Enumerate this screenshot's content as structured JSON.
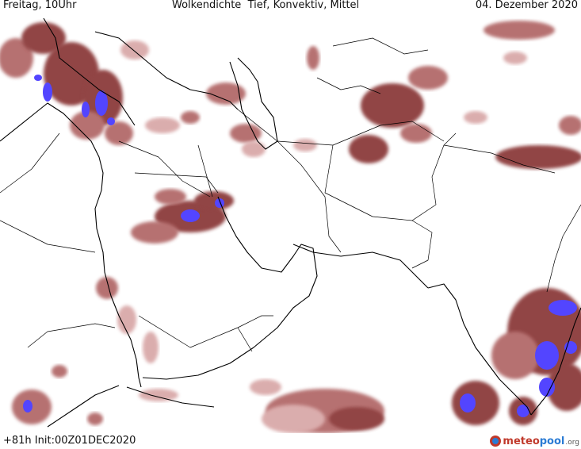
{
  "header": {
    "left": "Freitag, 10Uhr",
    "center": "Wolkendichte  Tief, Konvektiv, Mittel",
    "right": "04. Dezember 2020"
  },
  "footer": {
    "run_info": "+81h  Init:00Z01DEC2020",
    "brand": {
      "part1": "meteo",
      "part2": "pool",
      "suffix": ".org"
    }
  },
  "colors": {
    "background": "#ffffff",
    "border": "#000000",
    "cloud_light": "#d9a9a9",
    "cloud_medium": "#b36b6b",
    "cloud_dark": "#8c3b3b",
    "convective": "#4a3cff"
  }
}
